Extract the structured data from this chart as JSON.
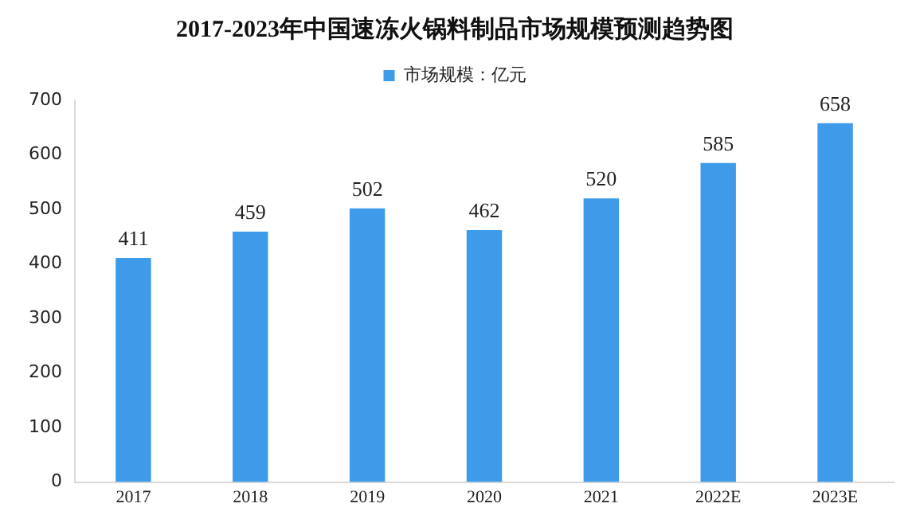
{
  "chart_data": {
    "type": "bar",
    "title": "2017-2023年中国速冻火锅料制品市场规模预测趋势图",
    "categories": [
      "2017",
      "2018",
      "2019",
      "2020",
      "2021",
      "2022E",
      "2023E"
    ],
    "series": [
      {
        "name": "市场规模：亿元",
        "color": "#3d9be9",
        "values": [
          411,
          459,
          502,
          462,
          520,
          585,
          658
        ]
      }
    ],
    "ylim": [
      0,
      700
    ],
    "yticks": [
      0,
      100,
      200,
      300,
      400,
      500,
      600,
      700
    ],
    "grid": false,
    "legend": "top",
    "data_labels": true
  }
}
